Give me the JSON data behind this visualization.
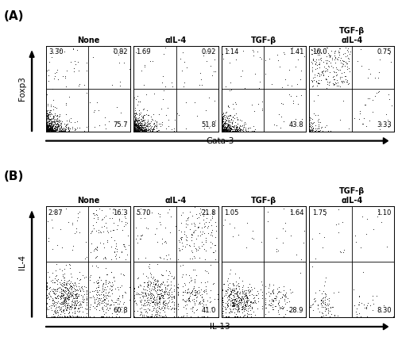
{
  "panel_A": {
    "title": "(A)",
    "conditions": [
      "None",
      "αIL-4",
      "TGF-β",
      "TGF-β\nαIL-4"
    ],
    "quadrant_values": [
      {
        "UL": "3.30",
        "UR": "0.82",
        "LR": "75.7"
      },
      {
        "UL": "1.69",
        "UR": "0.92",
        "LR": "51.8"
      },
      {
        "UL": "1.14",
        "UR": "1.41",
        "LR": "43.8"
      },
      {
        "UL": "16.0",
        "UR": "0.75",
        "LR": "3.33"
      }
    ],
    "xlabel": "Gata-3",
    "ylabel": "Foxp3"
  },
  "panel_B": {
    "title": "(B)",
    "conditions": [
      "None",
      "αIL-4",
      "TGF-β",
      "TGF-β\nαIL-4"
    ],
    "quadrant_values": [
      {
        "UL": "2.87",
        "UR": "16.3",
        "LR": "60.8"
      },
      {
        "UL": "5.70",
        "UR": "21.8",
        "LR": "41.0"
      },
      {
        "UL": "1.05",
        "UR": "1.64",
        "LR": "28.9"
      },
      {
        "UL": "1.75",
        "UR": "1.10",
        "LR": "8.30"
      }
    ],
    "xlabel": "IL-13",
    "ylabel": "IL-4"
  },
  "fig_width": 5.01,
  "fig_height": 4.3,
  "dpi": 100
}
